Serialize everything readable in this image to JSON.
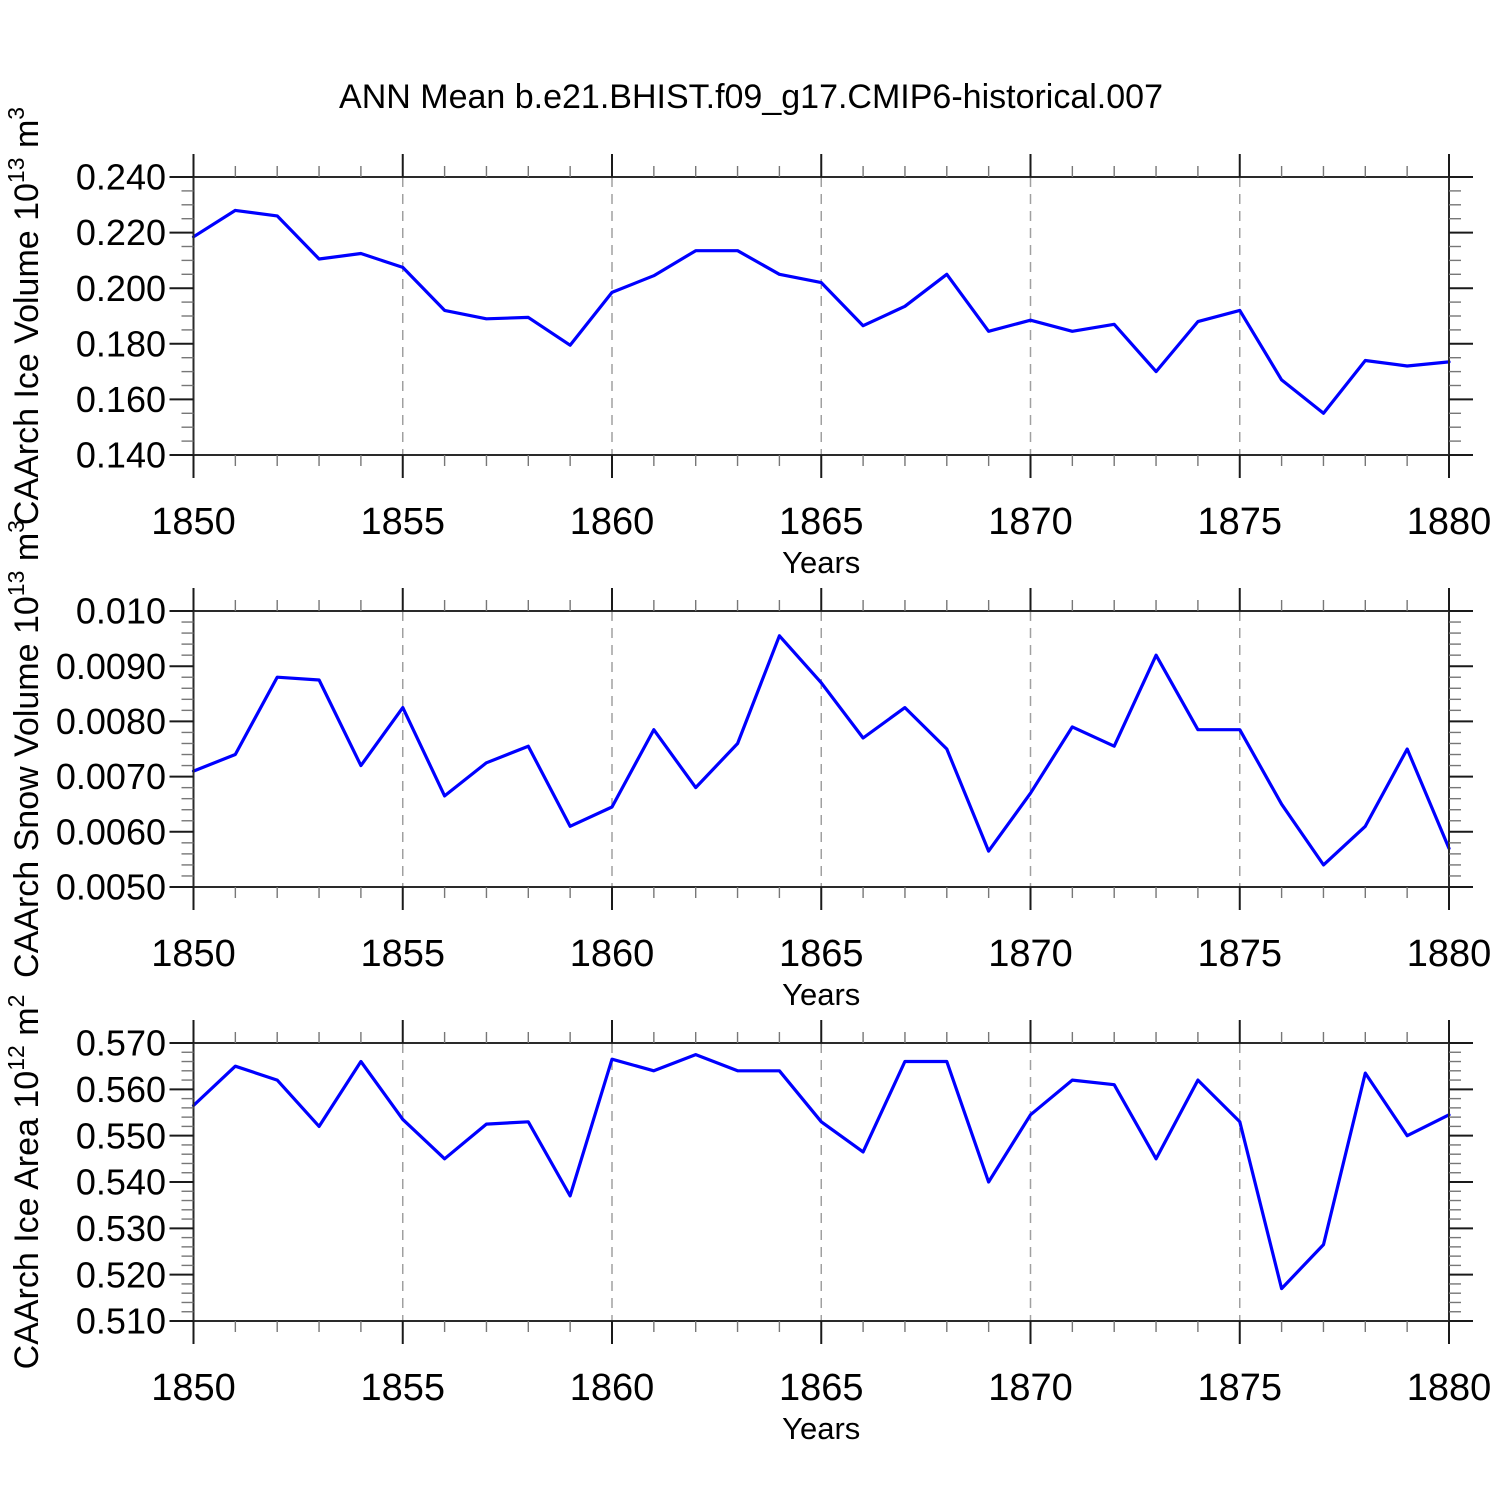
{
  "title": "ANN Mean b.e21.BHIST.f09_g17.CMIP6-historical.007",
  "colors": {
    "background": "#ffffff",
    "line": "#0000ff",
    "grid": "#a0a0a0",
    "axis": "#2a2a2a",
    "major_tick": "#1a1a1a",
    "minor_tick": "#777777",
    "text": "#000000"
  },
  "x_axis": {
    "label": "Years",
    "min": 1850,
    "max": 1880,
    "major_step": 5,
    "minor_step": 1,
    "grid_years": [
      1855,
      1860,
      1865,
      1870,
      1875
    ],
    "major_tick_labels": [
      "1850",
      "1855",
      "1860",
      "1865",
      "1870",
      "1875",
      "1880"
    ],
    "years": [
      1850,
      1851,
      1852,
      1853,
      1854,
      1855,
      1856,
      1857,
      1858,
      1859,
      1860,
      1861,
      1862,
      1863,
      1864,
      1865,
      1866,
      1867,
      1868,
      1869,
      1870,
      1871,
      1872,
      1873,
      1874,
      1875,
      1876,
      1877,
      1878,
      1879,
      1880
    ]
  },
  "chart_data": [
    {
      "type": "line",
      "name": "ice-volume",
      "ylabel": "CAArch Ice Volume 10^13 m^3",
      "ylabel_parts": [
        {
          "text": "CAArch Ice Volume 10"
        },
        {
          "text": "13",
          "sup": true
        },
        {
          "text": " m"
        },
        {
          "text": "3",
          "sup": true
        }
      ],
      "xlabel": "Years",
      "ylim": [
        0.14,
        0.24
      ],
      "y_major_step": 0.02,
      "y_minor_step": 0.005,
      "y_major_ticks": [
        {
          "value": 0.24,
          "label": "0.240"
        },
        {
          "value": 0.22,
          "label": "0.220"
        },
        {
          "value": 0.2,
          "label": "0.200"
        },
        {
          "value": 0.18,
          "label": "0.180"
        },
        {
          "value": 0.16,
          "label": "0.160"
        },
        {
          "value": 0.14,
          "label": "0.140"
        }
      ],
      "values": [
        0.2185,
        0.228,
        0.226,
        0.2105,
        0.2125,
        0.2075,
        0.192,
        0.189,
        0.1895,
        0.1795,
        0.1985,
        0.2045,
        0.2135,
        0.2135,
        0.205,
        0.202,
        0.1865,
        0.1935,
        0.205,
        0.1845,
        0.1885,
        0.1845,
        0.187,
        0.17,
        0.188,
        0.192,
        0.167,
        0.155,
        0.174,
        0.172,
        0.1735
      ]
    },
    {
      "type": "line",
      "name": "snow-volume",
      "ylabel": "CAArch Snow Volume 10^13 m^3",
      "ylabel_parts": [
        {
          "text": "CAArch Snow Volume 10"
        },
        {
          "text": "13",
          "sup": true
        },
        {
          "text": " m"
        },
        {
          "text": "3",
          "sup": true
        }
      ],
      "xlabel": "Years",
      "ylim": [
        0.005,
        0.01
      ],
      "y_major_step": 0.001,
      "y_minor_step": 0.0002,
      "y_major_ticks": [
        {
          "value": 0.01,
          "label": "0.010"
        },
        {
          "value": 0.009,
          "label": "0.0090"
        },
        {
          "value": 0.008,
          "label": "0.0080"
        },
        {
          "value": 0.007,
          "label": "0.0070"
        },
        {
          "value": 0.006,
          "label": "0.0060"
        },
        {
          "value": 0.005,
          "label": "0.0050"
        }
      ],
      "values": [
        0.0071,
        0.0074,
        0.0088,
        0.00875,
        0.0072,
        0.00825,
        0.00665,
        0.00725,
        0.00755,
        0.0061,
        0.00645,
        0.00785,
        0.0068,
        0.0076,
        0.00955,
        0.0087,
        0.0077,
        0.00825,
        0.0075,
        0.00565,
        0.0067,
        0.0079,
        0.00755,
        0.0092,
        0.00785,
        0.00785,
        0.0065,
        0.0054,
        0.0061,
        0.0075,
        0.0057
      ]
    },
    {
      "type": "line",
      "name": "ice-area",
      "ylabel": "CAArch Ice Area 10^12 m^2",
      "ylabel_parts": [
        {
          "text": "CAArch Ice Area 10"
        },
        {
          "text": "12",
          "sup": true
        },
        {
          "text": " m"
        },
        {
          "text": "2",
          "sup": true
        }
      ],
      "xlabel": "Years",
      "ylim": [
        0.51,
        0.57
      ],
      "y_major_step": 0.01,
      "y_minor_step": 0.002,
      "y_major_ticks": [
        {
          "value": 0.57,
          "label": "0.570"
        },
        {
          "value": 0.56,
          "label": "0.560"
        },
        {
          "value": 0.55,
          "label": "0.550"
        },
        {
          "value": 0.54,
          "label": "0.540"
        },
        {
          "value": 0.53,
          "label": "0.530"
        },
        {
          "value": 0.52,
          "label": "0.520"
        },
        {
          "value": 0.51,
          "label": "0.510"
        }
      ],
      "values": [
        0.5565,
        0.565,
        0.562,
        0.552,
        0.566,
        0.5535,
        0.545,
        0.5525,
        0.553,
        0.537,
        0.5665,
        0.564,
        0.5675,
        0.564,
        0.564,
        0.553,
        0.5465,
        0.566,
        0.566,
        0.54,
        0.5545,
        0.562,
        0.561,
        0.545,
        0.562,
        0.553,
        0.517,
        0.5265,
        0.5635,
        0.55,
        0.5545
      ]
    }
  ]
}
